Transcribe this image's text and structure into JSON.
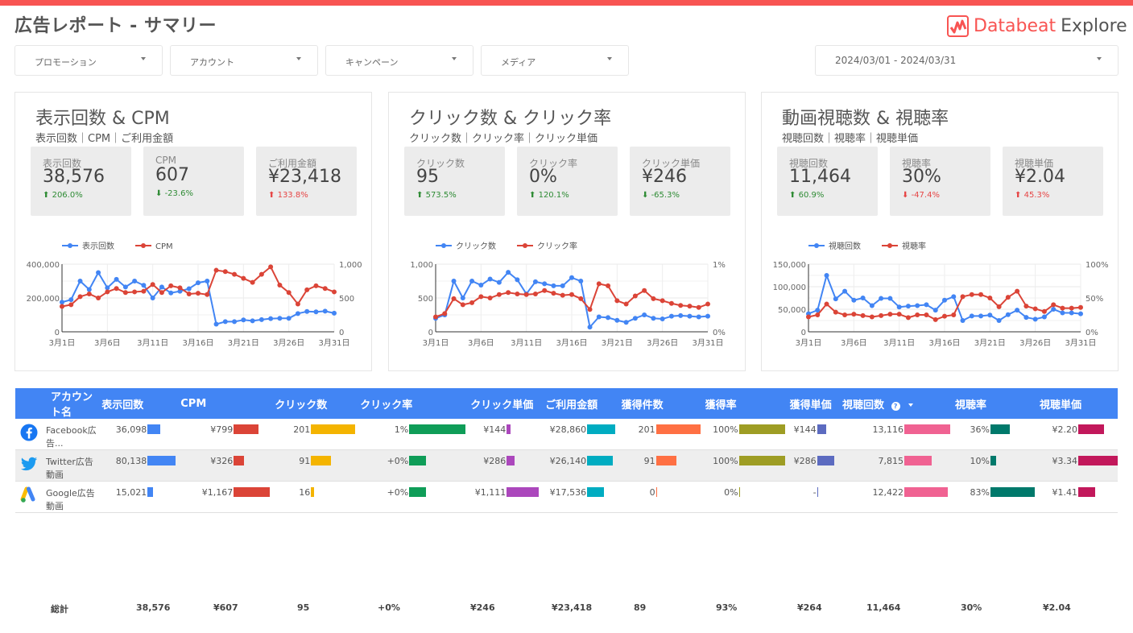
{
  "header": {
    "title": "広告レポート - サマリー",
    "logo_part1": "Databeat",
    "logo_part2": "Explore",
    "brand_color": "#f85452"
  },
  "filters": [
    {
      "label": "プロモーション"
    },
    {
      "label": "アカウント"
    },
    {
      "label": "キャンペーン"
    },
    {
      "label": "メディア"
    }
  ],
  "date_range": "2024/03/01 - 2024/03/31",
  "cards": [
    {
      "title": "表示回数 & CPM",
      "subtitle": "表示回数｜CPM｜ご利用金額",
      "kpis": [
        {
          "label": "表示回数",
          "value": "38,576",
          "delta": "206.0%",
          "dir": "up",
          "tone": "good"
        },
        {
          "label": "CPM",
          "value": "607",
          "delta": "-23.6%",
          "dir": "down",
          "tone": "good"
        },
        {
          "label": "ご利用金額",
          "value": "¥23,418",
          "delta": "133.8%",
          "dir": "up",
          "tone": "bad"
        }
      ]
    },
    {
      "title": "クリック数 & クリック率",
      "subtitle": "クリック数｜クリック率｜クリック単価",
      "kpis": [
        {
          "label": "クリック数",
          "value": "95",
          "delta": "573.5%",
          "dir": "up",
          "tone": "good"
        },
        {
          "label": "クリック率",
          "value": "0%",
          "delta": "120.1%",
          "dir": "up",
          "tone": "good"
        },
        {
          "label": "クリック単価",
          "value": "¥246",
          "delta": "-65.3%",
          "dir": "down",
          "tone": "good"
        }
      ]
    },
    {
      "title": "動画視聴数 & 視聴率",
      "subtitle": "視聴回数｜視聴率｜視聴単価",
      "kpis": [
        {
          "label": "視聴回数",
          "value": "11,464",
          "delta": "60.9%",
          "dir": "up",
          "tone": "good"
        },
        {
          "label": "視聴率",
          "value": "30%",
          "delta": "-47.4%",
          "dir": "down",
          "tone": "bad"
        },
        {
          "label": "視聴単価",
          "value": "¥2.04",
          "delta": "45.3%",
          "dir": "up",
          "tone": "bad"
        }
      ]
    }
  ],
  "chart_data": [
    {
      "type": "line",
      "x_tick_labels": [
        "3月1日",
        "3月6日",
        "3月11日",
        "3月16日",
        "3月21日",
        "3月26日",
        "3月31日"
      ],
      "days": 31,
      "y_left": {
        "ticks": [
          "400,000",
          "200,000",
          "0"
        ],
        "range": [
          0,
          400000
        ]
      },
      "y_right": {
        "ticks": [
          "1,000",
          "500",
          "0"
        ],
        "range": [
          0,
          1000
        ]
      },
      "legend_position": "top-left",
      "series": [
        {
          "name": "表示回数",
          "axis": "left",
          "color": "#4285f4",
          "values": [
            175000,
            190000,
            300000,
            250000,
            350000,
            260000,
            310000,
            265000,
            300000,
            275000,
            200000,
            265000,
            230000,
            240000,
            255000,
            290000,
            300000,
            45000,
            60000,
            60000,
            70000,
            65000,
            72000,
            78000,
            80000,
            80000,
            108000,
            120000,
            118000,
            122000,
            110000
          ]
        },
        {
          "name": "CPM",
          "axis": "right",
          "color": "#db4437",
          "values": [
            375,
            400,
            520,
            560,
            500,
            590,
            640,
            580,
            590,
            600,
            700,
            580,
            680,
            650,
            560,
            570,
            550,
            910,
            890,
            850,
            790,
            730,
            850,
            960,
            690,
            580,
            410,
            620,
            680,
            640,
            590
          ]
        }
      ]
    },
    {
      "type": "line",
      "x_tick_labels": [
        "3月1日",
        "3月6日",
        "3月11日",
        "3月16日",
        "3月21日",
        "3月26日",
        "3月31日"
      ],
      "days": 31,
      "y_left": {
        "ticks": [
          "1,000",
          "500",
          "0"
        ],
        "range": [
          0,
          1000
        ]
      },
      "y_right": {
        "ticks": [
          "1%",
          "0%"
        ],
        "range": [
          0,
          1
        ]
      },
      "legend_position": "top-left",
      "series": [
        {
          "name": "クリック数",
          "axis": "left",
          "color": "#4285f4",
          "values": [
            200,
            250,
            750,
            500,
            750,
            690,
            780,
            730,
            880,
            770,
            560,
            740,
            710,
            680,
            680,
            800,
            750,
            70,
            220,
            210,
            170,
            140,
            200,
            250,
            200,
            190,
            230,
            240,
            230,
            220,
            230
          ]
        },
        {
          "name": "クリック率",
          "axis": "right",
          "color": "#db4437",
          "values": [
            0.22,
            0.27,
            0.49,
            0.4,
            0.43,
            0.52,
            0.5,
            0.55,
            0.58,
            0.56,
            0.55,
            0.56,
            0.61,
            0.57,
            0.54,
            0.55,
            0.49,
            0.33,
            0.71,
            0.68,
            0.46,
            0.41,
            0.53,
            0.61,
            0.49,
            0.46,
            0.42,
            0.39,
            0.38,
            0.36,
            0.41
          ]
        }
      ]
    },
    {
      "type": "line",
      "x_tick_labels": [
        "3月1日",
        "3月6日",
        "3月11日",
        "3月16日",
        "3月21日",
        "3月26日",
        "3月31日"
      ],
      "days": 31,
      "y_left": {
        "ticks": [
          "150,000",
          "100,000",
          "50,000",
          "0"
        ],
        "range": [
          0,
          150000
        ]
      },
      "y_right": {
        "ticks": [
          "100%",
          "50%",
          "0%"
        ],
        "range": [
          0,
          100
        ]
      },
      "legend_position": "top-left",
      "series": [
        {
          "name": "視聴回数",
          "axis": "left",
          "color": "#4285f4",
          "values": [
            40000,
            48000,
            125000,
            73000,
            90000,
            70000,
            75000,
            58000,
            74000,
            74000,
            55000,
            57000,
            58000,
            60000,
            48000,
            70000,
            78000,
            25000,
            35000,
            35000,
            37000,
            25000,
            38000,
            48000,
            32000,
            28000,
            33000,
            50000,
            42000,
            42000,
            40000
          ]
        },
        {
          "name": "視聴率",
          "axis": "right",
          "color": "#db4437",
          "values": [
            22,
            25,
            41,
            29,
            25,
            26,
            24,
            22,
            24,
            26,
            26,
            21,
            25,
            25,
            18,
            23,
            25,
            52,
            55,
            55,
            50,
            37,
            51,
            60,
            38,
            34,
            30,
            40,
            35,
            35,
            36
          ]
        }
      ]
    }
  ],
  "table": {
    "headers": [
      "アカウント名",
      "表示回数",
      "CPM",
      "クリック数",
      "クリック率",
      "クリック単価",
      "ご利用金額",
      "獲得件数",
      "獲得率",
      "獲得単価",
      "視聴回数",
      "視聴率",
      "視聴単価"
    ],
    "sort_help_icon": "help-icon",
    "bar_colors": [
      "#4285f4",
      "#db4437",
      "#f4b400",
      "#0f9d58",
      "#ab47bc",
      "#00acc1",
      "#ff7043",
      "#9e9d24",
      "#5c6bc0",
      "#f06292",
      "#00796b",
      "#c2185b"
    ],
    "rows": [
      {
        "icon": "facebook-icon",
        "name": "Facebook広告...",
        "cells": [
          "36,098",
          "¥799",
          "201",
          "1%",
          "¥144",
          "¥28,860",
          "201",
          "100%",
          "¥144",
          "13,116",
          "36%",
          "¥2.20"
        ],
        "bars": [
          0.45,
          0.7,
          1.0,
          1.0,
          0.13,
          1.0,
          1.0,
          1.0,
          1.0,
          1.0,
          0.43,
          0.66
        ]
      },
      {
        "icon": "twitter-icon",
        "name": "Twitter広告動画",
        "cells": [
          "80,138",
          "¥326",
          "91",
          "+0%",
          "¥286",
          "¥26,140",
          "91",
          "100%",
          "¥286",
          "7,815",
          "10%",
          "¥3.34"
        ],
        "bars": [
          1.0,
          0.28,
          0.45,
          0.3,
          0.26,
          0.91,
          0.45,
          1.0,
          1.99,
          0.6,
          0.12,
          1.0
        ]
      },
      {
        "icon": "google-ads-icon",
        "name": "Google広告動画",
        "cells": [
          "15,021",
          "¥1,167",
          "16",
          "+0%",
          "¥1,111",
          "¥17,536",
          "0",
          "0%",
          "-",
          "12,422",
          "83%",
          "¥1.41"
        ],
        "bars": [
          0.19,
          1.0,
          0.08,
          0.3,
          1.0,
          0.61,
          0.0,
          0.0,
          0.0,
          0.95,
          1.0,
          0.42
        ]
      }
    ],
    "totals": {
      "label": "総計",
      "cells": [
        "38,576",
        "¥607",
        "95",
        "+0%",
        "¥246",
        "¥23,418",
        "89",
        "93%",
        "¥264",
        "11,464",
        "30%",
        "¥2.04"
      ]
    }
  }
}
